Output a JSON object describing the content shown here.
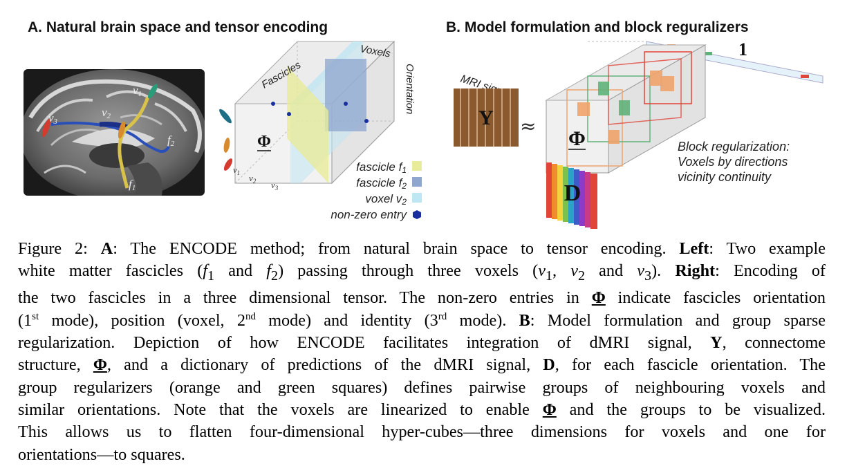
{
  "panel_a": {
    "title": "A. Natural brain space and tensor encoding",
    "brain_labels": {
      "v1": "v",
      "v1_sub": "1",
      "v2": "v",
      "v2_sub": "2",
      "v3": "v",
      "v3_sub": "3",
      "f1": "f",
      "f1_sub": "1",
      "f2": "f",
      "f2_sub": "2"
    },
    "tensor_labels": {
      "fascicles": "Fascicles",
      "voxels": "Voxels",
      "orientation": "Orientation",
      "phi": "Φ",
      "v1": "v",
      "v1_sub": "1",
      "v2": "v",
      "v2_sub": "2",
      "v3": "v",
      "v3_sub": "3"
    },
    "legend": [
      {
        "label": "fascicle f",
        "sub": "1",
        "color": "#e8eb9a"
      },
      {
        "label": "fascicle f",
        "sub": "2",
        "color": "#8fa6cf"
      },
      {
        "label": "voxel v",
        "sub": "2",
        "color": "#bfe6f3"
      },
      {
        "label": "non-zero entry",
        "sub": "",
        "color": "#1a2f9e"
      }
    ]
  },
  "panel_b": {
    "title": "B. Model formulation and block reguralizers",
    "mri_label": "MRI signal",
    "y_label": "Y",
    "approx": "≈",
    "phi_label": "Φ",
    "d_label": "D",
    "one_label": "1",
    "block_reg": [
      "Block regularization:",
      "Voxels by directions",
      "vicinity continuity"
    ],
    "colors": {
      "orange": "#f0a36c",
      "green": "#5fb27a",
      "red": "#e0453a"
    }
  },
  "caption": {
    "fig": "Figure 2: ",
    "A": "A",
    "t1": ": The ENCODE method; from natural brain space to tensor encoding. ",
    "left": "Left",
    "t2": ": Two example",
    "t3": "white matter fascicles (",
    "f1": "f",
    "f1s": "1",
    "t4": " and ",
    "f2": "f",
    "f2s": "2",
    "t5": ") passing through three voxels (",
    "v1": "v",
    "v1s": "1",
    "c1": ", ",
    "v2": "v",
    "v2s": "2",
    "t6": " and ",
    "v3": "v",
    "v3s": "3",
    "t7": "). ",
    "right": "Right",
    "t8": ": Encoding of",
    "t9": "the two fascicles in a three dimensional tensor. The non-zero entries in ",
    "phi": "Φ",
    "t10": " indicate fascicles orientation",
    "t11": "(1",
    "st": "st",
    "t12": " mode), position (voxel, 2",
    "nd": "nd",
    "t13": " mode) and identity (3",
    "rd": "rd",
    "t14": " mode). ",
    "B": "B",
    "t15": ": Model formulation and group sparse",
    "t16": "regularization. Depiction of how ENCODE facilitates integration of dMRI signal, ",
    "Y": "Y",
    "t17": ", connectome",
    "t18": "structure, ",
    "phi2": "Φ",
    "t19": ", and a dictionary of predictions of the dMRI signal, ",
    "D": "D",
    "t20": ", for each fascicle orientation. The",
    "t21": "group regularizers (orange and green squares) defines pairwise groups of neighbouring voxels and",
    "t22": "similar orientations. Note that the voxels are linearized to enable ",
    "phi3": "Φ",
    "t23": " and the groups to be visualized.",
    "t24": "This allows us to flatten four-dimensional hyper-cubes—three dimensions for voxels and one for",
    "t25": "orientations—to squares."
  }
}
